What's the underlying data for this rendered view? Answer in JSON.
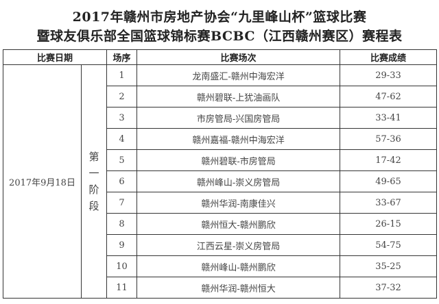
{
  "title_line1": "2017年赣州市房地产协会“九里峰山杯”篮球比赛",
  "title_line2": "暨球友俱乐部全国篮球锦标赛BCBC（江西赣州赛区）赛程表",
  "headers": {
    "date": "比赛日期",
    "order": "场序",
    "match": "比赛场次",
    "result": "比赛成绩"
  },
  "date": "2017年9月18日",
  "stage": [
    "第",
    "一",
    "阶",
    "段"
  ],
  "rows": [
    {
      "order": "1",
      "match": "龙南盛汇-赣州中海宏洋",
      "result": "29-33"
    },
    {
      "order": "2",
      "match": "赣州碧联-上犹油画队",
      "result": "47-62"
    },
    {
      "order": "3",
      "match": "市房管局-兴国房管局",
      "result": "33-41"
    },
    {
      "order": "4",
      "match": "赣州嘉福-赣州中海宏洋",
      "result": "57-36"
    },
    {
      "order": "5",
      "match": "赣州碧联-市房管局",
      "result": "17-42"
    },
    {
      "order": "6",
      "match": "赣州峰山-崇义房管局",
      "result": "49-65"
    },
    {
      "order": "7",
      "match": "赣州华润-南康佳兴",
      "result": "33-67"
    },
    {
      "order": "8",
      "match": "赣州恒大-赣州鹏欣",
      "result": "26-15"
    },
    {
      "order": "9",
      "match": "江西云星-崇义房管局",
      "result": "54-75"
    },
    {
      "order": "10",
      "match": "赣州峰山-赣州鹏欣",
      "result": "35-25"
    },
    {
      "order": "11",
      "match": "赣州华润-赣州恒大",
      "result": "37-32"
    }
  ]
}
